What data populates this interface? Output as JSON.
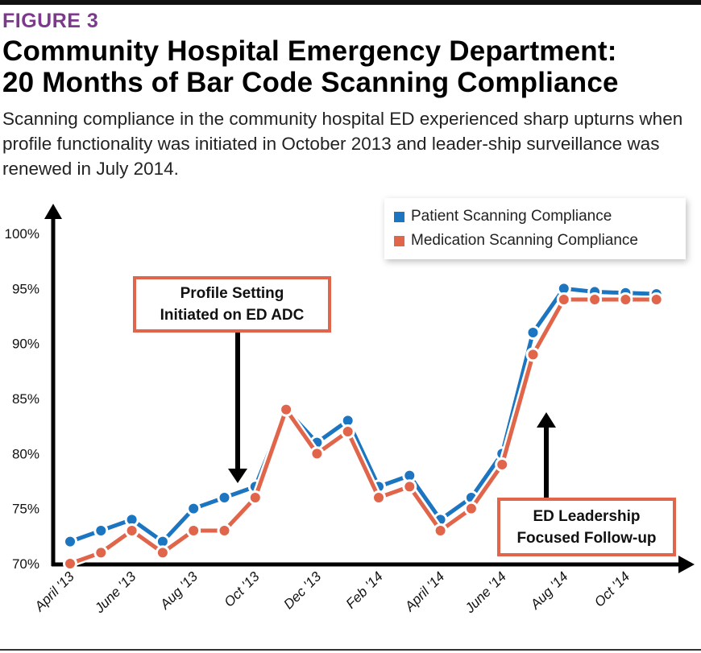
{
  "header": {
    "figure_label": "FIGURE 3",
    "title_line1": "Community Hospital Emergency Department:",
    "title_line2": "20 Months of Bar Code Scanning Compliance",
    "subtitle": "Scanning compliance in the community hospital ED experienced sharp upturns when profile functionality was initiated in October 2013 and leader-ship surveillance was renewed in July 2014."
  },
  "colors": {
    "patient": "#1b75c0",
    "medication": "#e0654a",
    "figure_label": "#7d3a8c"
  },
  "chart_data": {
    "type": "line",
    "title": "Community Hospital Emergency Department: 20 Months of Bar Code Scanning Compliance",
    "xlabel": "",
    "ylabel": "",
    "x": [
      "April '13",
      "May '13",
      "June '13",
      "July '13",
      "Aug '13",
      "Sep '13",
      "Oct '13",
      "Nov '13",
      "Dec '13",
      "Jan '14",
      "Feb '14",
      "Mar '14",
      "April '14",
      "May '14",
      "June '14",
      "July '14",
      "Aug '14",
      "Sep '14",
      "Oct '14",
      "Nov '14"
    ],
    "x_tick_labels": [
      "April '13",
      "June '13",
      "Aug '13",
      "Oct '13",
      "Dec '13",
      "Feb '14",
      "April '14",
      "June '14",
      "Aug '14",
      "Oct '14"
    ],
    "y_tick_labels": [
      "70%",
      "75%",
      "80%",
      "85%",
      "90%",
      "95%",
      "100%"
    ],
    "ylim": [
      70,
      100
    ],
    "grid": false,
    "legend_position": "top-right",
    "series": [
      {
        "name": "Patient Scanning Compliance",
        "values": [
          72,
          73,
          74,
          72,
          75,
          76,
          77,
          84,
          81,
          83,
          77,
          78,
          74,
          76,
          80,
          91,
          95,
          94.7,
          94.6,
          94.5
        ]
      },
      {
        "name": "Medication Scanning Compliance",
        "values": [
          70,
          71,
          73,
          71,
          73,
          73,
          76,
          84,
          80,
          82,
          76,
          77,
          73,
          75,
          79,
          89,
          94,
          94,
          94,
          94
        ]
      }
    ],
    "annotations": [
      {
        "text_line1": "Profile Setting",
        "text_line2": "Initiated on ED ADC",
        "points_to": "Oct '13",
        "direction": "down"
      },
      {
        "text_line1": "ED Leadership",
        "text_line2": "Focused Follow-up",
        "points_to": "July '14",
        "direction": "up"
      }
    ]
  }
}
